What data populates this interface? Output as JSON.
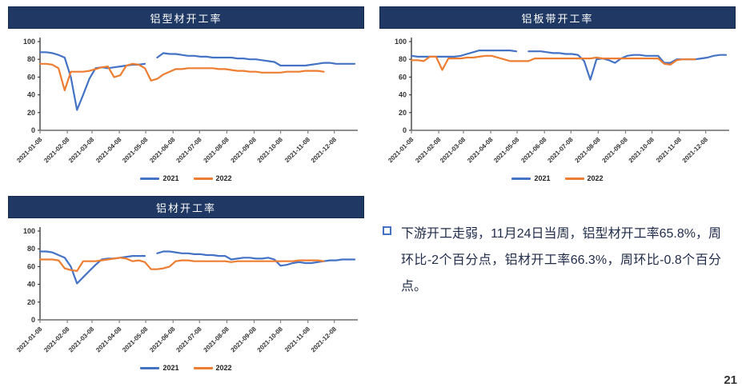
{
  "page": {
    "page_number": "21"
  },
  "commentary": {
    "text": "下游开工走弱，11月24日当周，铝型材开工率65.8%，周环比-2个百分点，铝材开工率66.3%，周环比-0.8个百分点。"
  },
  "colors": {
    "title_bar_bg": "#1F3864",
    "series_2021": "#4472C4",
    "series_2022": "#ED7D31",
    "x_axis": "#808080",
    "y_axis": "#404040"
  },
  "chart_data": [
    {
      "type": "line",
      "title": "铝型材开工率",
      "xlabel": "",
      "ylabel": "",
      "ylim": [
        0,
        100
      ],
      "y_ticks": [
        0,
        20,
        40,
        60,
        80,
        100
      ],
      "grid": false,
      "legend_position": "bottom",
      "x_tick_labels": [
        "2021-01-08",
        "2021-02-08",
        "2021-03-08",
        "2021-04-08",
        "2021-05-08",
        "2021-06-08",
        "2021-07-08",
        "2021-08-08",
        "2021-09-08",
        "2021-10-08",
        "2021-11-08",
        "2021-12-08"
      ],
      "x_tick_weeks": [
        0,
        4.43,
        8.43,
        12.86,
        17.14,
        21.57,
        25.86,
        30.29,
        34.71,
        39,
        43.43,
        47.71
      ],
      "x_range_weeks": [
        0,
        51
      ],
      "series": [
        {
          "name": "2021",
          "color": "#4472C4",
          "values_weekly": [
            88,
            88,
            87,
            85,
            82,
            60,
            23,
            40,
            58,
            70,
            71,
            70,
            71,
            72,
            73,
            74,
            74,
            75,
            null,
            82,
            87,
            86,
            86,
            85,
            84,
            84,
            83,
            83,
            82,
            82,
            82,
            82,
            81,
            81,
            80,
            80,
            79,
            78,
            77,
            73,
            73,
            73,
            73,
            73,
            74,
            75,
            76,
            76,
            75,
            75,
            75,
            75
          ]
        },
        {
          "name": "2022",
          "color": "#ED7D31",
          "values_weekly": [
            75,
            75,
            74,
            70,
            45,
            66,
            66,
            66,
            67,
            69,
            71,
            72,
            60,
            62,
            73,
            75,
            74,
            70,
            56,
            58,
            63,
            66,
            69,
            69,
            70,
            70,
            70,
            70,
            70,
            69,
            69,
            68,
            67,
            67,
            66,
            66,
            65,
            65,
            65,
            65,
            66,
            66,
            66,
            67,
            67,
            67,
            66,
            null,
            null,
            null,
            null,
            null
          ]
        }
      ]
    },
    {
      "type": "line",
      "title": "铝板带开工率",
      "xlabel": "",
      "ylabel": "",
      "ylim": [
        0,
        100
      ],
      "y_ticks": [
        0,
        20,
        40,
        60,
        80,
        100
      ],
      "grid": false,
      "legend_position": "bottom",
      "x_tick_labels": [
        "2021-01-08",
        "2021-02-08",
        "2021-03-08",
        "2021-04-08",
        "2021-05-08",
        "2021-06-08",
        "2021-07-08",
        "2021-08-08",
        "2021-09-08",
        "2021-10-08",
        "2021-11-08",
        "2021-12-08"
      ],
      "x_tick_weeks": [
        0,
        4.43,
        8.43,
        12.86,
        17.14,
        21.57,
        25.86,
        30.29,
        34.71,
        39,
        43.43,
        47.71
      ],
      "x_range_weeks": [
        0,
        51
      ],
      "series": [
        {
          "name": "2021",
          "color": "#4472C4",
          "values_weekly": [
            84,
            83,
            83,
            83,
            83,
            83,
            83,
            83,
            84,
            86,
            88,
            90,
            90,
            90,
            90,
            90,
            90,
            89,
            null,
            89,
            89,
            89,
            88,
            87,
            87,
            86,
            86,
            85,
            78,
            57,
            80,
            81,
            79,
            76,
            81,
            84,
            85,
            85,
            84,
            84,
            84,
            76,
            76,
            80,
            80,
            80,
            80,
            81,
            82,
            84,
            85,
            85
          ]
        },
        {
          "name": "2022",
          "color": "#ED7D31",
          "values_weekly": [
            79,
            79,
            78,
            83,
            83,
            68,
            81,
            81,
            81,
            82,
            82,
            83,
            84,
            84,
            82,
            80,
            78,
            78,
            78,
            78,
            81,
            81,
            81,
            81,
            81,
            81,
            81,
            81,
            81,
            81,
            82,
            81,
            81,
            81,
            81,
            81,
            81,
            81,
            81,
            81,
            81,
            75,
            74,
            79,
            80,
            80,
            80,
            null,
            null,
            null,
            null,
            null
          ]
        }
      ]
    },
    {
      "type": "line",
      "title": "铝材开工率",
      "xlabel": "",
      "ylabel": "",
      "ylim": [
        0,
        100
      ],
      "y_ticks": [
        0,
        20,
        40,
        60,
        80,
        100
      ],
      "grid": false,
      "legend_position": "bottom",
      "x_tick_labels": [
        "2021-01-08",
        "2021-02-08",
        "2021-03-08",
        "2021-04-08",
        "2021-05-08",
        "2021-06-08",
        "2021-07-08",
        "2021-08-08",
        "2021-09-08",
        "2021-10-08",
        "2021-11-08",
        "2021-12-08"
      ],
      "x_tick_weeks": [
        0,
        4.43,
        8.43,
        12.86,
        17.14,
        21.57,
        25.86,
        30.29,
        34.71,
        39,
        43.43,
        47.71
      ],
      "x_range_weeks": [
        0,
        51
      ],
      "series": [
        {
          "name": "2021",
          "color": "#4472C4",
          "values_weekly": [
            77,
            77,
            76,
            73,
            70,
            60,
            41,
            48,
            55,
            62,
            68,
            69,
            69,
            70,
            71,
            72,
            72,
            72,
            null,
            75,
            77,
            77,
            76,
            75,
            75,
            74,
            74,
            73,
            73,
            72,
            72,
            68,
            69,
            70,
            70,
            69,
            69,
            70,
            68,
            61,
            62,
            64,
            65,
            64,
            64,
            65,
            66,
            67,
            67,
            68,
            68,
            68
          ]
        },
        {
          "name": "2022",
          "color": "#ED7D31",
          "values_weekly": [
            68,
            68,
            68,
            67,
            58,
            56,
            55,
            66,
            66,
            66,
            67,
            68,
            69,
            70,
            69,
            66,
            67,
            65,
            57,
            57,
            58,
            60,
            66,
            67,
            67,
            66,
            66,
            66,
            66,
            66,
            66,
            65,
            66,
            66,
            66,
            66,
            66,
            66,
            66,
            66,
            66,
            66,
            67,
            67,
            67,
            67,
            66,
            null,
            null,
            null,
            null,
            null
          ]
        }
      ]
    }
  ]
}
